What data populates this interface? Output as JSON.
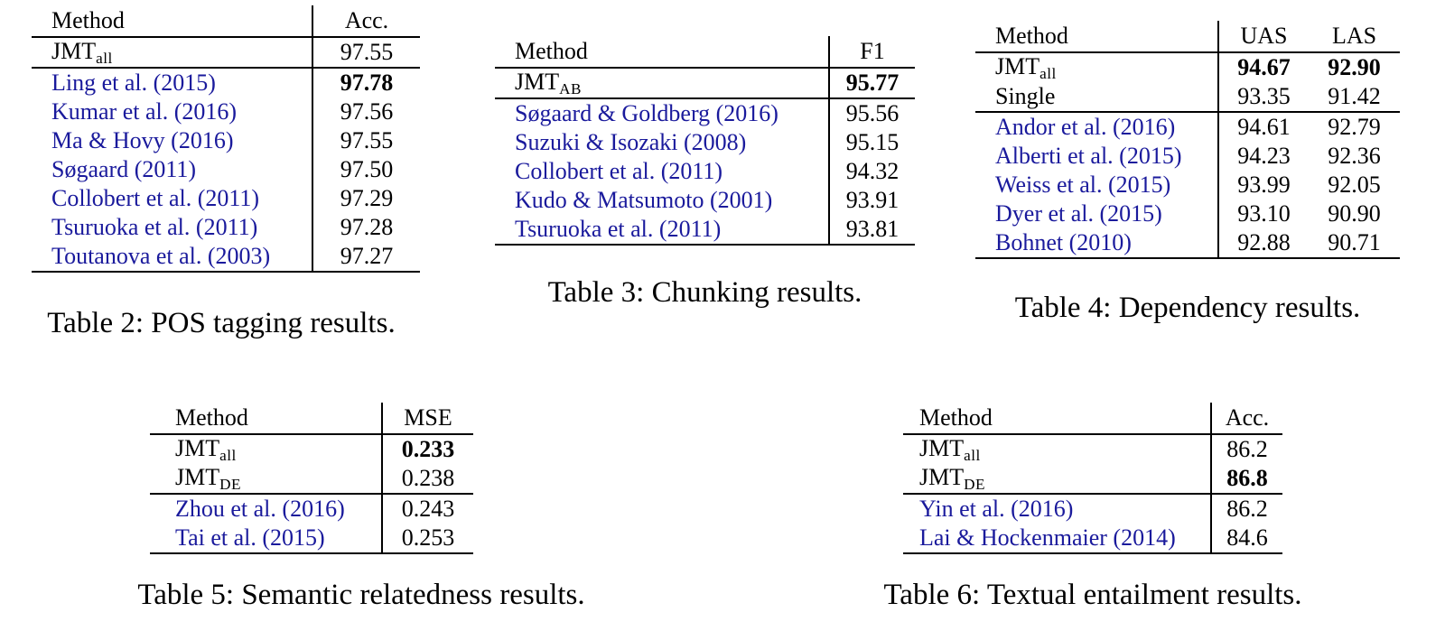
{
  "colors": {
    "background": "#ffffff",
    "text": "#000000",
    "citation_link": "#1a1a9c",
    "rule": "#000000"
  },
  "tables": {
    "pos": {
      "caption": "Table 2: POS tagging results.",
      "columns": {
        "method": "Method",
        "acc": "Acc."
      },
      "rows": [
        {
          "base": "JMT",
          "sub": "all",
          "value": "97.55"
        },
        {
          "method": "Ling et al. (2015)",
          "value": "97.78"
        },
        {
          "method": "Kumar et al. (2016)",
          "value": "97.56"
        },
        {
          "method": "Ma & Hovy (2016)",
          "value": "97.55"
        },
        {
          "method": "Søgaard (2011)",
          "value": "97.50"
        },
        {
          "method": "Collobert et al. (2011)",
          "value": "97.29"
        },
        {
          "method": "Tsuruoka et al. (2011)",
          "value": "97.28"
        },
        {
          "method": "Toutanova et al. (2003)",
          "value": "97.27"
        }
      ]
    },
    "chunking": {
      "caption": "Table 3: Chunking results.",
      "columns": {
        "method": "Method",
        "f1": "F1"
      },
      "rows": [
        {
          "base": "JMT",
          "sub": "AB",
          "value": "95.77"
        },
        {
          "method": "Søgaard & Goldberg (2016)",
          "value": "95.56"
        },
        {
          "method": "Suzuki & Isozaki (2008)",
          "value": "95.15"
        },
        {
          "method": "Collobert et al. (2011)",
          "value": "94.32"
        },
        {
          "method": "Kudo & Matsumoto (2001)",
          "value": "93.91"
        },
        {
          "method": "Tsuruoka et al. (2011)",
          "value": "93.81"
        }
      ]
    },
    "dependency": {
      "caption": "Table 4: Dependency results.",
      "columns": {
        "method": "Method",
        "uas": "UAS",
        "las": "LAS"
      },
      "rows": [
        {
          "base": "JMT",
          "sub": "all",
          "uas": "94.67",
          "las": "92.90"
        },
        {
          "method": "Single",
          "uas": "93.35",
          "las": "91.42"
        },
        {
          "method": "Andor et al. (2016)",
          "uas": "94.61",
          "las": "92.79"
        },
        {
          "method": "Alberti et al. (2015)",
          "uas": "94.23",
          "las": "92.36"
        },
        {
          "method": "Weiss et al. (2015)",
          "uas": "93.99",
          "las": "92.05"
        },
        {
          "method": "Dyer et al. (2015)",
          "uas": "93.10",
          "las": "90.90"
        },
        {
          "method": "Bohnet (2010)",
          "uas": "92.88",
          "las": "90.71"
        }
      ]
    },
    "relatedness": {
      "caption": "Table 5: Semantic relatedness results.",
      "columns": {
        "method": "Method",
        "mse": "MSE"
      },
      "rows": [
        {
          "base": "JMT",
          "sub": "all",
          "value": "0.233"
        },
        {
          "base": "JMT",
          "sub": "DE",
          "value": "0.238"
        },
        {
          "method": "Zhou et al. (2016)",
          "value": "0.243"
        },
        {
          "method": "Tai et al. (2015)",
          "value": "0.253"
        }
      ]
    },
    "entailment": {
      "caption": "Table 6: Textual entailment results.",
      "columns": {
        "method": "Method",
        "acc": "Acc."
      },
      "rows": [
        {
          "base": "JMT",
          "sub": "all",
          "value": "86.2"
        },
        {
          "base": "JMT",
          "sub": "DE",
          "value": "86.8"
        },
        {
          "method": "Yin et al. (2016)",
          "value": "86.2"
        },
        {
          "method": "Lai & Hockenmaier (2014)",
          "value": "84.6"
        }
      ]
    }
  }
}
